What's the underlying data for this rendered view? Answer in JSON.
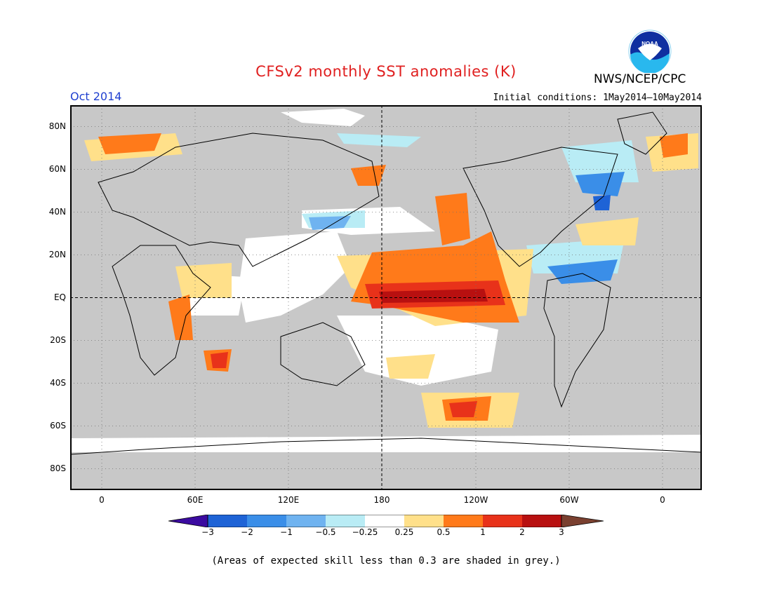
{
  "title": "CFSv2 monthly SST anomalies (K)",
  "month": "Oct 2014",
  "initial_conditions": "Initial conditions: 1May2014—10May2014",
  "agency": "NWS/NCEP/CPC",
  "logo_text": "NOAA",
  "lat_labels": [
    "80N",
    "60N",
    "40N",
    "20N",
    "EQ",
    "20S",
    "40S",
    "60S",
    "80S"
  ],
  "lon_labels": [
    "0",
    "60E",
    "120E",
    "180",
    "120W",
    "60W",
    "0"
  ],
  "colorbar": {
    "labels": [
      "−3",
      "−2",
      "−1",
      "−0.5",
      "−0.25",
      "0.25",
      "0.5",
      "1",
      "2",
      "3"
    ],
    "colors": [
      "#3b0ba0",
      "#1e63d6",
      "#3a8ee8",
      "#6fb3f0",
      "#b9ecf5",
      "#ffffff",
      "#ffe08a",
      "#ff7a1a",
      "#e8321a",
      "#b81010",
      "#7a4030"
    ]
  },
  "colors": {
    "skill_grey": "#c8c8c8",
    "title": "#e02020",
    "month": "#2040d0"
  },
  "footnote": "(Areas of expected skill less than 0.3 are shaded in grey.)"
}
